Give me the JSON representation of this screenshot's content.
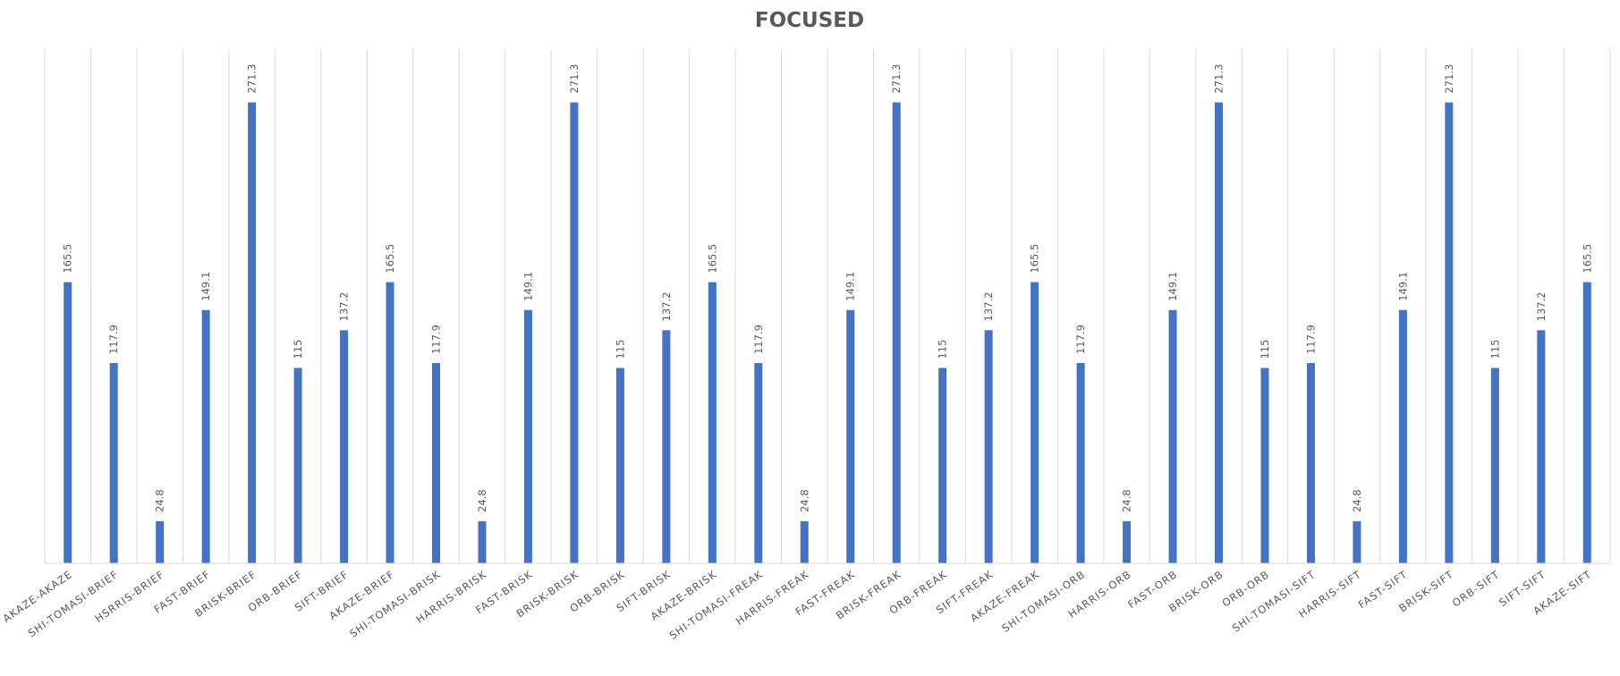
{
  "chart_data": {
    "type": "bar",
    "title": "FOCUSED",
    "xlabel": "",
    "ylabel": "",
    "ylim": [
      0,
      300
    ],
    "grid": "vertical",
    "bar_color": "#4472C4",
    "grid_color": "#d9d9d9",
    "text_color": "#595959",
    "categories": [
      "AKAZE-AKAZE",
      "SHI-TOMASI-BRIEF",
      "HSRRIS-BRIEF",
      "FAST-BRIEF",
      "BRISK-BRIEF",
      "ORB-BRIEF",
      "SIFT-BRIEF",
      "AKAZE-BRIEF",
      "SHI-TOMASI-BRISK",
      "HARRIS-BRISK",
      "FAST-BRISK",
      "BRISK-BRISK",
      "ORB-BRISK",
      "SIFT-BRISK",
      "AKAZE-BRISK",
      "SHI-TOMASI-FREAK",
      "HARRIS-FREAK",
      "FAST-FREAK",
      "BRISK-FREAK",
      "ORB-FREAK",
      "SIFT-FREAK",
      "AKAZE-FREAK",
      "SHI-TOMASI-ORB",
      "HARRIS-ORB",
      "FAST-ORB",
      "BRISK-ORB",
      "ORB-ORB",
      "SHI-TOMASI-SIFT",
      "HARRIS-SIFT",
      "FAST-SIFT",
      "BRISK-SIFT",
      "ORB-SIFT",
      "SIFT-SIFT",
      "AKAZE-SIFT"
    ],
    "values": [
      165.5,
      117.9,
      24.8,
      149.1,
      271.3,
      115,
      137.2,
      165.5,
      117.9,
      24.8,
      149.1,
      271.3,
      115,
      137.2,
      165.5,
      117.9,
      24.8,
      149.1,
      271.3,
      115,
      137.2,
      165.5,
      117.9,
      24.8,
      149.1,
      271.3,
      115,
      117.9,
      24.8,
      149.1,
      271.3,
      115,
      137.2,
      165.5
    ],
    "value_labels": [
      "165.5",
      "117.9",
      "24.8",
      "149.1",
      "271.3",
      "115",
      "137.2",
      "165.5",
      "117.9",
      "24.8",
      "149.1",
      "271.3",
      "115",
      "137.2",
      "165.5",
      "117.9",
      "24.8",
      "149.1",
      "271.3",
      "115",
      "137.2",
      "165.5",
      "117.9",
      "24.8",
      "149.1",
      "271.3",
      "115",
      "117.9",
      "24.8",
      "149.1",
      "271.3",
      "115",
      "137.2",
      "165.5"
    ]
  }
}
